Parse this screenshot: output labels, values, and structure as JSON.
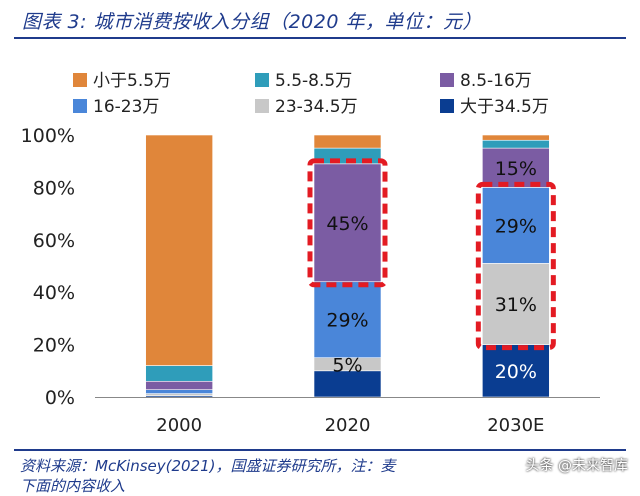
{
  "title": "图表 3: 城市消费按收入分组（2020 年，单位：元）",
  "footer": {
    "source_line": "资料来源：McKinsey(2021)，国盛证券研究所，注：麦",
    "second_line": "下面的内容收入"
  },
  "watermark": "头条 @未来智库",
  "colors": {
    "frame": "#1f3b8c",
    "highlight": "#e31b23"
  },
  "chart_data": {
    "type": "bar",
    "stacked": true,
    "percent": true,
    "categories": [
      "2000",
      "2020",
      "2030E"
    ],
    "ylim": [
      0,
      100
    ],
    "yticks": [
      "0%",
      "20%",
      "40%",
      "60%",
      "80%",
      "100%"
    ],
    "series": [
      {
        "name": "大于34.5万",
        "color": "#0a3d91",
        "values": [
          0.5,
          10,
          20
        ]
      },
      {
        "name": "23-34.5万",
        "color": "#c8c8c8",
        "values": [
          0.8,
          5,
          31
        ]
      },
      {
        "name": "16-23万",
        "color": "#4a86d9",
        "values": [
          1.5,
          29,
          29
        ]
      },
      {
        "name": "8.5-16万",
        "color": "#7b5ca3",
        "values": [
          3.2,
          45,
          15
        ]
      },
      {
        "name": "5.5-8.5万",
        "color": "#2f9dba",
        "values": [
          6,
          6,
          3
        ]
      },
      {
        "name": "小于5.5万",
        "color": "#e0863a",
        "values": [
          88,
          5,
          2
        ]
      }
    ],
    "legend_order": [
      "小于5.5万",
      "5.5-8.5万",
      "8.5-16万",
      "16-23万",
      "23-34.5万",
      "大于34.5万"
    ],
    "data_labels": [
      {
        "category": "2020",
        "series": "大于34.5万",
        "text": "",
        "anchor_series": "大于34.5万"
      },
      {
        "category": "2020",
        "series": "23-34.5万",
        "text": "5%"
      },
      {
        "category": "2020",
        "series": "16-23万",
        "text": "29%"
      },
      {
        "category": "2020",
        "series": "8.5-16万",
        "text": "45%"
      },
      {
        "category": "2030E",
        "series": "大于34.5万",
        "text": "20%"
      },
      {
        "category": "2030E",
        "series": "23-34.5万",
        "text": "31%"
      },
      {
        "category": "2030E",
        "series": "16-23万",
        "text": "29%"
      },
      {
        "category": "2030E",
        "series": "8.5-16万",
        "text": "15%"
      }
    ],
    "highlights": [
      {
        "category": "2020",
        "from_series": "8.5-16万",
        "to_series": "8.5-16万"
      },
      {
        "category": "2030E",
        "from_series": "23-34.5万",
        "to_series": "16-23万"
      }
    ],
    "legend_position": "top"
  }
}
